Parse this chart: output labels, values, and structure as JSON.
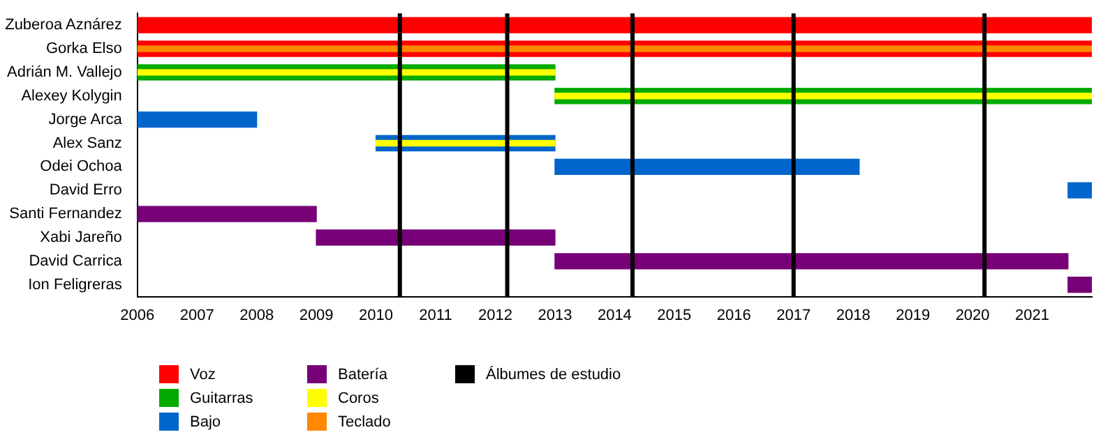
{
  "chart_data": {
    "type": "bar",
    "orientation": "horizontal",
    "categories": [
      "Zuberoa Aznárez",
      "Gorka Elso",
      "Adrián M. Vallejo",
      "Alexey Kolygin",
      "Jorge Arca",
      "Alex Sanz",
      "Odei Ochoa",
      "David Erro",
      "Santi Fernandez",
      "Xabi Jareño",
      "David Carrica",
      "Ion Feligreras"
    ],
    "series": [
      {
        "name": "Voz",
        "color": "#ff0000",
        "base": [
          2006,
          2006,
          null,
          null,
          null,
          null,
          null,
          null,
          null,
          null,
          null,
          null
        ],
        "values": [
          16,
          16,
          null,
          null,
          null,
          null,
          null,
          null,
          null,
          null,
          null,
          null
        ]
      },
      {
        "name": "Guitarras",
        "color": "#00aa00",
        "base": [
          null,
          null,
          2006,
          2013,
          null,
          null,
          null,
          null,
          null,
          null,
          null,
          null
        ],
        "values": [
          null,
          null,
          7,
          9,
          null,
          null,
          null,
          null,
          null,
          null,
          null,
          null
        ]
      },
      {
        "name": "Bajo",
        "color": "#0066cc",
        "base": [
          null,
          null,
          null,
          null,
          2006,
          2010,
          2013,
          2021.6,
          null,
          null,
          null,
          null
        ],
        "values": [
          null,
          null,
          null,
          null,
          2,
          3,
          5.1,
          0.4,
          null,
          null,
          null,
          null
        ]
      },
      {
        "name": "Batería",
        "color": "#770077",
        "base": [
          null,
          null,
          null,
          null,
          null,
          null,
          null,
          null,
          2006,
          2009,
          2013,
          2021.6
        ],
        "values": [
          null,
          null,
          null,
          null,
          null,
          null,
          null,
          null,
          3,
          4,
          8.6,
          0.4
        ]
      },
      {
        "name": "Coros",
        "color": "#ffff00",
        "base": [
          null,
          null,
          2006,
          2013,
          null,
          2010,
          null,
          null,
          null,
          null,
          null,
          null
        ],
        "values": [
          null,
          null,
          7,
          9,
          null,
          3,
          null,
          null,
          null,
          null,
          null,
          null
        ]
      },
      {
        "name": "Teclado",
        "color": "#ff8800",
        "base": [
          null,
          2006,
          null,
          null,
          null,
          null,
          null,
          null,
          null,
          null,
          null,
          null
        ],
        "values": [
          null,
          16,
          null,
          null,
          null,
          null,
          null,
          null,
          null,
          null,
          null,
          null
        ]
      }
    ],
    "ref_lines": [
      {
        "axis": "x",
        "value": 2010.4,
        "color": "#000000",
        "label": "Álbumes de estudio"
      },
      {
        "axis": "x",
        "value": 2012.2,
        "color": "#000000"
      },
      {
        "axis": "x",
        "value": 2014.3,
        "color": "#000000"
      },
      {
        "axis": "x",
        "value": 2017.0,
        "color": "#000000"
      },
      {
        "axis": "x",
        "value": 2020.2,
        "color": "#000000"
      }
    ],
    "xlim": [
      2006,
      2022
    ],
    "xticks": [
      2006,
      2007,
      2008,
      2009,
      2010,
      2011,
      2012,
      2013,
      2014,
      2015,
      2016,
      2017,
      2018,
      2019,
      2020,
      2021
    ],
    "legend": "bottom"
  }
}
